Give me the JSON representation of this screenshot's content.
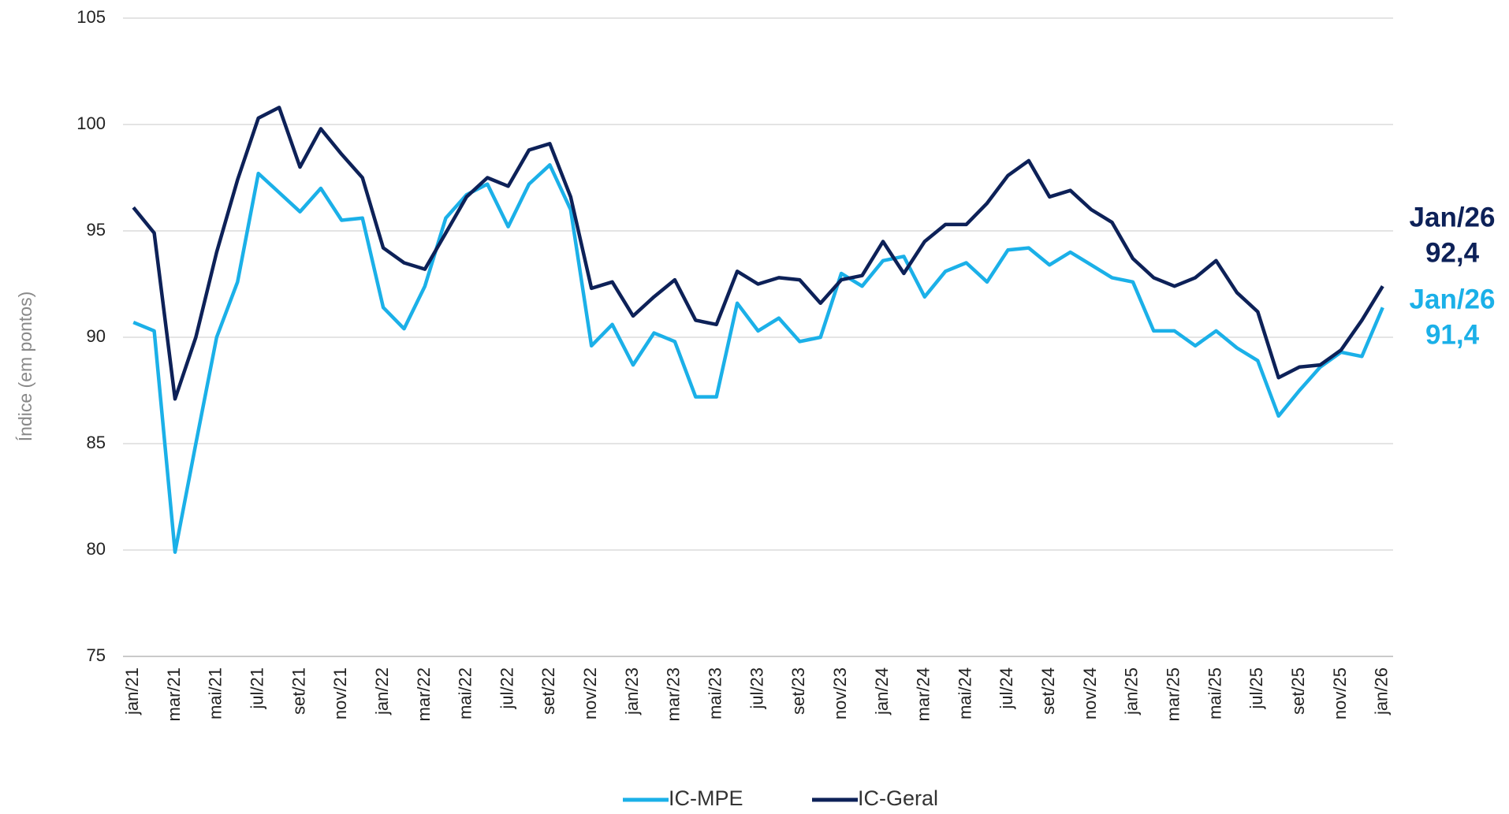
{
  "chart_data": {
    "type": "line",
    "y_label": "Índice (em pontos)",
    "categories": [
      "jan/21",
      null,
      "mar/21",
      null,
      "mai/21",
      null,
      "jul/21",
      null,
      "set/21",
      null,
      "nov/21",
      null,
      "jan/22",
      null,
      "mar/22",
      null,
      "mai/22",
      null,
      "jul/22",
      null,
      "set/22",
      null,
      "nov/22",
      null,
      "jan/23",
      null,
      "mar/23",
      null,
      "mai/23",
      null,
      "jul/23",
      null,
      "set/23",
      null,
      "nov/23",
      null,
      "jan/24",
      null,
      "mar/24",
      null,
      "mai/24",
      null,
      "jul/24",
      null,
      "set/24",
      null,
      "nov/24",
      null,
      "jan/25",
      null,
      "mar/25",
      null,
      "mai/25",
      null,
      "jul/25",
      null,
      "set/25",
      null,
      "nov/25",
      null,
      "jan/26"
    ],
    "series": [
      {
        "name": "IC-MPE",
        "color": "#1bb0e8",
        "values": [
          90.7,
          90.3,
          79.9,
          85.0,
          90.0,
          92.6,
          97.7,
          96.8,
          95.9,
          97.0,
          95.5,
          95.6,
          91.4,
          90.4,
          92.4,
          95.6,
          96.7,
          97.2,
          95.2,
          97.2,
          98.1,
          96.0,
          89.6,
          90.6,
          88.7,
          90.2,
          89.8,
          87.2,
          87.2,
          91.6,
          90.3,
          90.9,
          89.8,
          90.0,
          93.0,
          92.4,
          93.6,
          93.8,
          91.9,
          93.1,
          93.5,
          92.6,
          94.1,
          94.2,
          93.4,
          94.0,
          93.4,
          92.8,
          92.6,
          90.3,
          90.3,
          89.6,
          90.3,
          89.5,
          88.9,
          86.3,
          87.5,
          88.6,
          89.3,
          89.1,
          91.4
        ]
      },
      {
        "name": "IC-Geral",
        "color": "#0d2158",
        "values": [
          96.1,
          94.9,
          87.1,
          90.0,
          94.0,
          97.4,
          100.3,
          100.8,
          98.0,
          99.8,
          98.6,
          97.5,
          94.2,
          93.5,
          93.2,
          94.9,
          96.6,
          97.5,
          97.1,
          98.8,
          99.1,
          96.6,
          92.3,
          92.6,
          91.0,
          91.9,
          92.7,
          90.8,
          90.6,
          93.1,
          92.5,
          92.8,
          92.7,
          91.6,
          92.7,
          92.9,
          94.5,
          93.0,
          94.5,
          95.3,
          95.3,
          96.3,
          97.6,
          98.3,
          96.6,
          96.9,
          96.0,
          95.4,
          93.7,
          92.8,
          92.4,
          92.8,
          93.6,
          92.1,
          91.2,
          88.1,
          88.6,
          88.7,
          89.4,
          90.8,
          92.4
        ]
      }
    ],
    "annotations": [
      {
        "lines": [
          "Jan/26",
          "92,4"
        ],
        "color": "#0d2158"
      },
      {
        "lines": [
          "Jan/26",
          "91,4"
        ],
        "color": "#1bb0e8"
      }
    ],
    "ylim": [
      75,
      105
    ],
    "yticks": [
      75,
      80,
      85,
      90,
      95,
      100,
      105
    ],
    "grid": true
  }
}
